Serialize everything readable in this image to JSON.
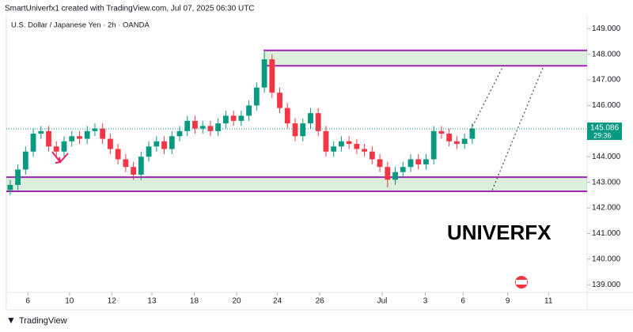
{
  "header": "SmartUniverfx1 created with TradingView.com, Jul 07, 2025 06:30 UTC",
  "footer": "TradingView",
  "chart_data": {
    "type": "candlestick",
    "title": "U.S. Dollar / Japanese Yen · 2h · OANDA",
    "watermark": "UNIVERFX",
    "up_color": "#089981",
    "down_color": "#f23645",
    "xlim": [
      0,
      75
    ],
    "ylim": [
      138.7,
      149.5
    ],
    "xticks": [
      {
        "value": 2.8,
        "label": "6"
      },
      {
        "value": 8.2,
        "label": "10"
      },
      {
        "value": 13.7,
        "label": "12"
      },
      {
        "value": 18.9,
        "label": "13"
      },
      {
        "value": 24.4,
        "label": "18"
      },
      {
        "value": 29.9,
        "label": "20"
      },
      {
        "value": 35.2,
        "label": "24"
      },
      {
        "value": 40.7,
        "label": "26"
      },
      {
        "value": 48.8,
        "label": "Jul"
      },
      {
        "value": 54.4,
        "label": "3"
      },
      {
        "value": 59.3,
        "label": "6"
      },
      {
        "value": 65.1,
        "label": "9"
      },
      {
        "value": 70.4,
        "label": "11"
      }
    ],
    "yticks": [
      {
        "value": 139,
        "label": "139.000"
      },
      {
        "value": 140,
        "label": "140.000"
      },
      {
        "value": 141,
        "label": "141.000"
      },
      {
        "value": 142,
        "label": "142.000"
      },
      {
        "value": 143,
        "label": "143.000"
      },
      {
        "value": 144,
        "label": "144.000"
      },
      {
        "value": 145,
        "label": "145.000"
      },
      {
        "value": 146,
        "label": "146.000"
      },
      {
        "value": 147,
        "label": "147.000"
      },
      {
        "value": 148,
        "label": "148.000"
      },
      {
        "value": 149,
        "label": "149.000"
      }
    ],
    "open": [
      142.7,
      142.9,
      143.5,
      144.2,
      144.9,
      145.0,
      144.4,
      144.2,
      144.6,
      144.8,
      144.7,
      145.0,
      145.1,
      144.7,
      144.3,
      143.9,
      143.6,
      143.3,
      144.0,
      144.4,
      144.6,
      144.3,
      144.8,
      145.0,
      145.4,
      145.1,
      145.2,
      145.0,
      145.3,
      145.6,
      145.4,
      145.6,
      146.0,
      146.7,
      147.8,
      146.5,
      145.9,
      145.3,
      144.8,
      145.3,
      145.7,
      145.0,
      144.2,
      144.4,
      144.6,
      144.5,
      144.3,
      144.2,
      143.9,
      143.6,
      143.1,
      143.4,
      143.6,
      143.9,
      143.7,
      143.9,
      145.0,
      144.9,
      144.6,
      144.5,
      144.7
    ],
    "high": [
      143.1,
      143.7,
      144.4,
      145.1,
      145.2,
      145.2,
      144.6,
      144.8,
      145.0,
      145.0,
      145.2,
      145.3,
      145.3,
      144.9,
      144.5,
      144.1,
      143.8,
      144.2,
      144.6,
      144.8,
      144.8,
      145.0,
      145.2,
      145.6,
      145.6,
      145.4,
      145.4,
      145.5,
      145.8,
      145.8,
      145.8,
      146.2,
      146.9,
      148.1,
      148.0,
      146.7,
      146.1,
      145.5,
      145.5,
      145.9,
      145.9,
      145.2,
      144.6,
      144.8,
      144.8,
      144.7,
      144.5,
      144.4,
      144.1,
      143.8,
      143.6,
      143.8,
      144.1,
      144.1,
      144.1,
      145.2,
      145.2,
      145.1,
      144.8,
      144.9,
      145.3
    ],
    "low": [
      142.5,
      142.7,
      143.3,
      144.0,
      144.7,
      144.2,
      144.0,
      144.0,
      144.4,
      144.5,
      144.5,
      144.8,
      144.5,
      144.1,
      143.7,
      143.4,
      143.1,
      143.1,
      143.8,
      144.2,
      144.1,
      144.1,
      144.6,
      144.8,
      144.9,
      144.9,
      144.8,
      144.8,
      145.1,
      145.2,
      145.2,
      145.4,
      145.8,
      146.5,
      146.3,
      145.7,
      145.1,
      144.6,
      144.6,
      145.1,
      144.8,
      144.0,
      144.0,
      144.2,
      144.3,
      144.1,
      144.0,
      143.7,
      143.4,
      142.8,
      142.9,
      143.2,
      143.4,
      143.5,
      143.5,
      143.7,
      144.7,
      144.4,
      144.3,
      144.3,
      144.5
    ],
    "close": [
      142.9,
      143.5,
      144.2,
      144.9,
      145.0,
      144.4,
      144.2,
      144.6,
      144.8,
      144.7,
      145.0,
      145.1,
      144.7,
      144.3,
      143.9,
      143.6,
      143.3,
      144.0,
      144.4,
      144.6,
      144.3,
      144.8,
      145.0,
      145.4,
      145.1,
      145.2,
      145.0,
      145.3,
      145.6,
      145.4,
      145.6,
      146.0,
      146.7,
      147.8,
      146.5,
      145.9,
      145.3,
      144.8,
      145.3,
      145.7,
      145.0,
      144.2,
      144.4,
      144.6,
      144.5,
      144.3,
      144.2,
      143.9,
      143.6,
      143.1,
      143.4,
      143.6,
      143.9,
      143.7,
      143.9,
      145.0,
      144.9,
      144.6,
      144.5,
      144.7,
      145.1
    ],
    "zones": [
      {
        "start": 33.4,
        "top": 148.15,
        "bottom": 147.55,
        "color": "#9c27b0"
      },
      {
        "start": 0,
        "top": 143.2,
        "bottom": 142.65,
        "color": "#9c27b0"
      }
    ],
    "projections": [
      {
        "x": [
          60.3,
          64.7
        ],
        "y": [
          145.05,
          147.65
        ]
      },
      {
        "x": [
          63.1,
          69.7
        ],
        "y": [
          142.7,
          147.5
        ]
      }
    ],
    "last_price": 145.086,
    "countdown": "29:36"
  }
}
